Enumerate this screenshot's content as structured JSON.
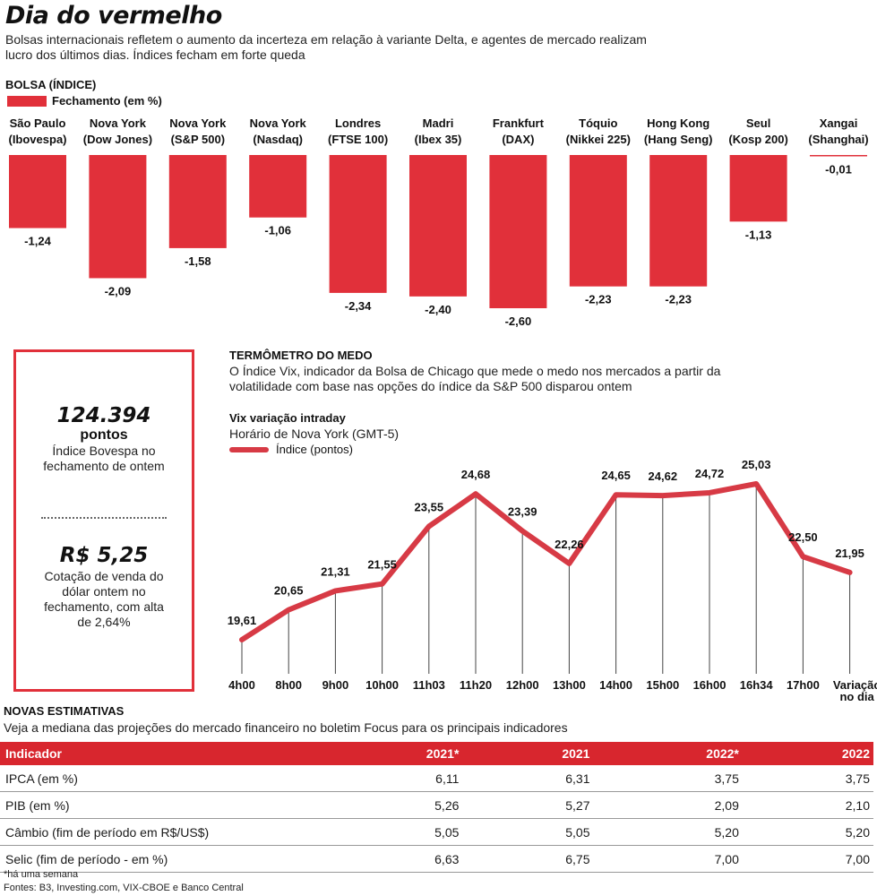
{
  "header": {
    "title": "Dia do vermelho",
    "subtitle": "Bolsas internacionais refletem o aumento da incerteza em relação à variante Delta, e agentes de mercado realizam lucro dos últimos dias. Índices fecham em forte queda"
  },
  "colors": {
    "accent": "#e1303a",
    "line": "#d73a45",
    "table_header": "#d8262e"
  },
  "chart_data": [
    {
      "type": "bar",
      "title": "BOLSA (ÍNDICE)",
      "legend": [
        "Fechamento (em %)"
      ],
      "categories": [
        {
          "city": "São Paulo",
          "index": "(Ibovespa)"
        },
        {
          "city": "Nova York",
          "index": "(Dow Jones)"
        },
        {
          "city": "Nova York",
          "index": "(S&P 500)"
        },
        {
          "city": "Nova York",
          "index": "(Nasdaq)"
        },
        {
          "city": "Londres",
          "index": "(FTSE 100)"
        },
        {
          "city": "Madri",
          "index": "(Ibex 35)"
        },
        {
          "city": "Frankfurt",
          "index": "(DAX)"
        },
        {
          "city": "Tóquio",
          "index": "(Nikkei 225)"
        },
        {
          "city": "Hong Kong",
          "index": "(Hang Seng)"
        },
        {
          "city": "Seul",
          "index": "(Kosp 200)"
        },
        {
          "city": "Xangai",
          "index": "(Shanghai)"
        }
      ],
      "values": [
        -1.24,
        -2.09,
        -1.58,
        -1.06,
        -2.34,
        -2.4,
        -2.6,
        -2.23,
        -2.23,
        -1.13,
        -0.01
      ],
      "labels": [
        "-1,24",
        "-2,09",
        "-1,58",
        "-1,06",
        "-2,34",
        "-2,40",
        "-2,60",
        "-2,23",
        "-2,23",
        "-1,13",
        "-0,01"
      ],
      "ylim": [
        -2.6,
        0
      ]
    },
    {
      "type": "line",
      "title": "Vix variação intraday",
      "subtitle": "Horário de Nova York (GMT-5)",
      "legend": [
        "Índice (pontos)"
      ],
      "x": [
        "4h00",
        "8h00",
        "9h00",
        "10h00",
        "11h03",
        "11h20",
        "12h00",
        "13h00",
        "14h00",
        "15h00",
        "16h00",
        "16h34",
        "17h00",
        "Variação no dia"
      ],
      "values": [
        19.61,
        20.65,
        21.31,
        21.55,
        23.55,
        24.68,
        23.39,
        22.26,
        24.65,
        24.62,
        24.72,
        25.03,
        22.5,
        21.95
      ],
      "labels": [
        "19,61",
        "20,65",
        "21,31",
        "21,55",
        "23,55",
        "24,68",
        "23,39",
        "22,26",
        "24,65",
        "24,62",
        "24,72",
        "25,03",
        "22,50",
        "21,95"
      ],
      "ylim": [
        19.61,
        25.03
      ]
    }
  ],
  "vix": {
    "section_title": "TERMÔMETRO DO MEDO",
    "description": "O Índice Vix, indicador da Bolsa de Chicago que mede o medo nos mercados a partir da volatilidade com base nas opções do índice da S&P 500 disparou ontem"
  },
  "stats": {
    "bovespa_value": "124.394",
    "bovespa_unit": "pontos",
    "bovespa_desc": "Índice Bovespa no fechamento de ontem",
    "dollar_value": "R$ 5,25",
    "dollar_desc": "Cotação de venda do dólar ontem no fechamento, com alta de 2,64%"
  },
  "estimates": {
    "section_title": "NOVAS ESTIMATIVAS",
    "description": "Veja a mediana das projeções do mercado financeiro no boletim Focus para os principais indicadores",
    "columns": [
      "Indicador",
      "2021*",
      "2021",
      "2022*",
      "2022"
    ],
    "rows": [
      [
        "IPCA (em %)",
        "6,11",
        "6,31",
        "3,75",
        "3,75"
      ],
      [
        "PIB (em %)",
        "5,26",
        "5,27",
        "2,09",
        "2,10"
      ],
      [
        "Câmbio (fim de período em R$/US$)",
        "5,05",
        "5,05",
        "5,20",
        "5,20"
      ],
      [
        "Selic (fim de período - em %)",
        "6,63",
        "6,75",
        "7,00",
        "7,00"
      ]
    ]
  },
  "footnote": "*há uma semana",
  "sources": "Fontes: B3, Investing.com, VIX-CBOE e Banco Central"
}
